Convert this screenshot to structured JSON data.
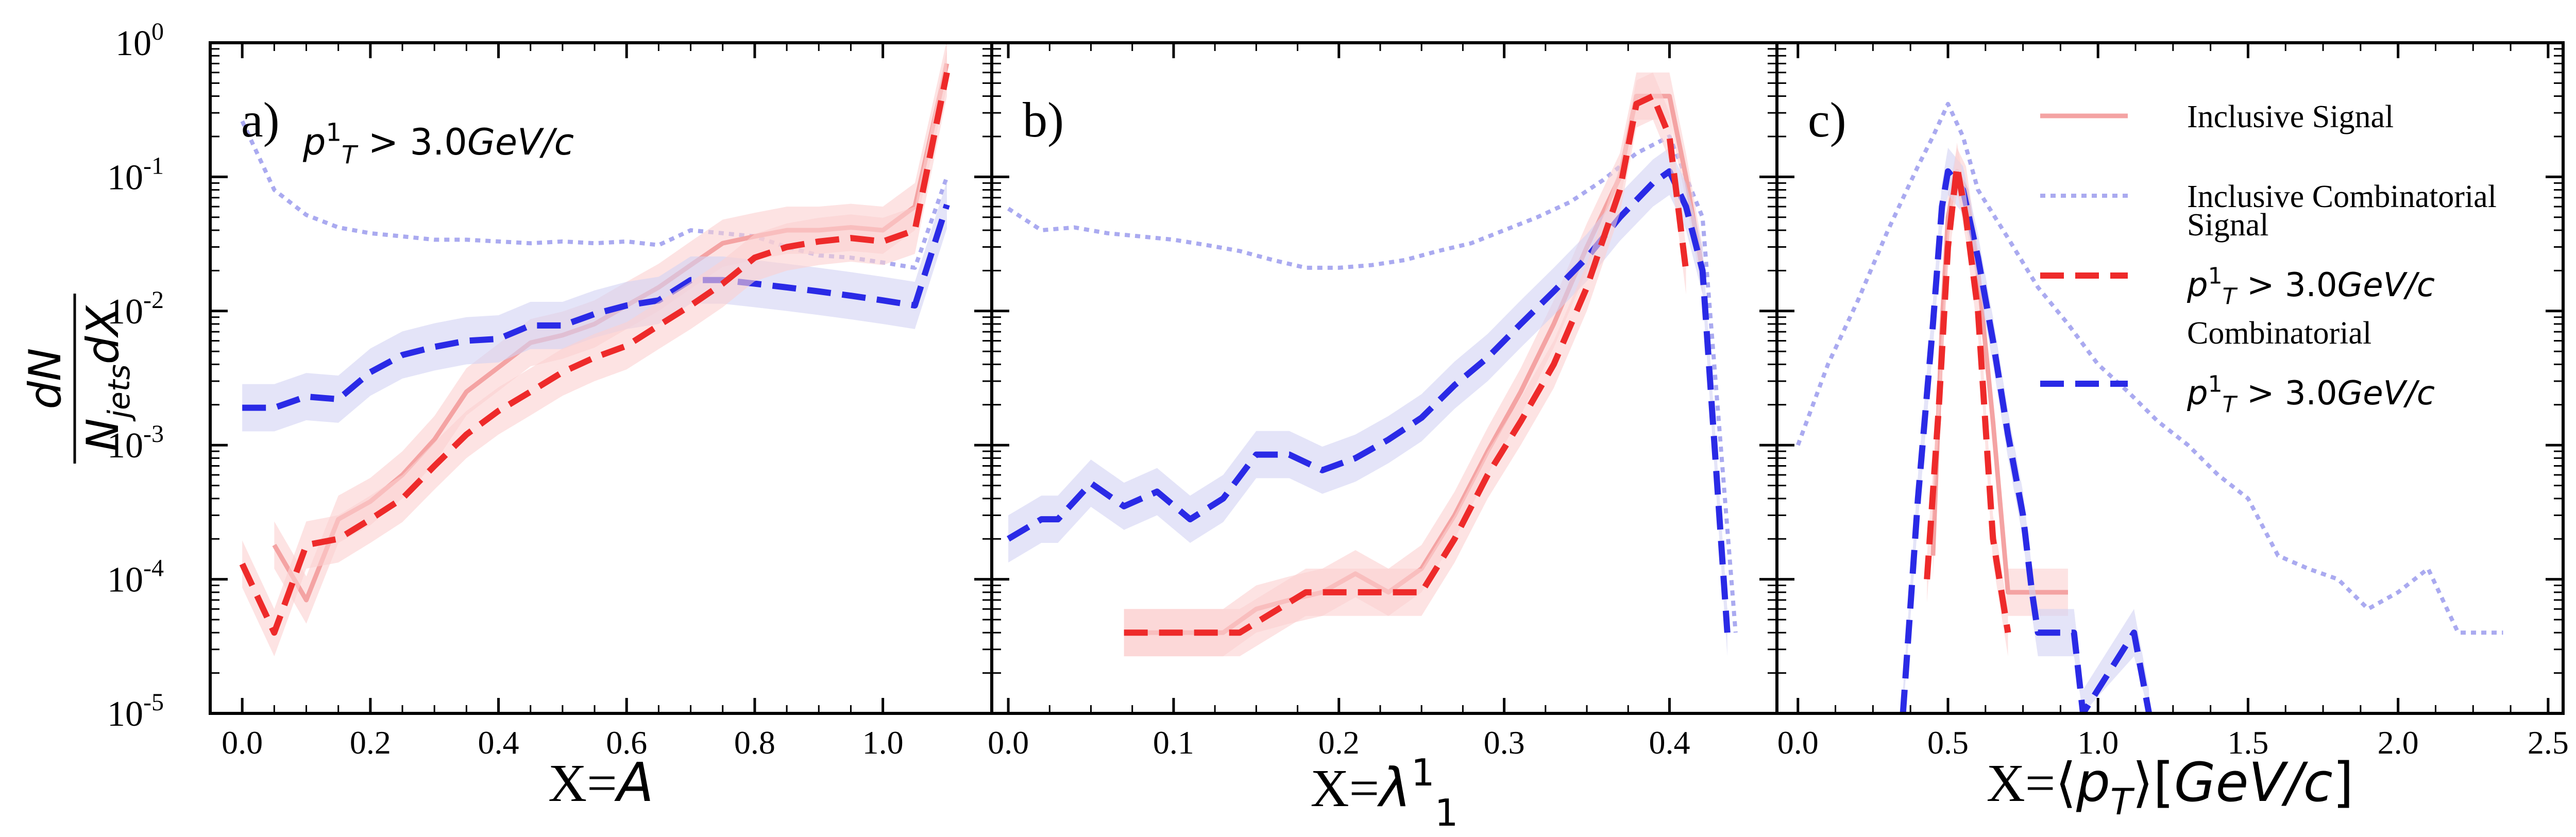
{
  "chart_data": [
    {
      "type": "line",
      "panel_label": "a)",
      "annotation": "p_T^1 > 3.0GeV/c",
      "xlabel": "X=A",
      "ylabel": "dN / N_jets dX",
      "yscale": "log",
      "ylim": [
        1e-05,
        1
      ],
      "xlim": [
        -0.05,
        1.17
      ],
      "xticks": [
        0.0,
        0.2,
        0.4,
        0.6,
        0.8,
        1.0
      ],
      "xtick_labels": [
        "0.0",
        "0.2",
        "0.4",
        "0.6",
        "0.8",
        "1.0"
      ],
      "series": [
        {
          "name": "Inclusive Combinatorial",
          "x": [
            0.0,
            0.05,
            0.1,
            0.15,
            0.2,
            0.25,
            0.3,
            0.35,
            0.4,
            0.45,
            0.5,
            0.55,
            0.6,
            0.65,
            0.7,
            0.75,
            0.8,
            0.85,
            0.9,
            0.95,
            1.0,
            1.05,
            1.1
          ],
          "y": [
            0.26,
            0.08,
            0.052,
            0.042,
            0.038,
            0.036,
            0.034,
            0.034,
            0.033,
            0.032,
            0.033,
            0.032,
            0.033,
            0.031,
            0.04,
            0.038,
            0.036,
            0.03,
            0.026,
            0.025,
            0.023,
            0.021,
            0.1
          ],
          "band": false
        },
        {
          "name": "Inclusive Signal",
          "x": [
            0.05,
            0.1,
            0.15,
            0.2,
            0.25,
            0.3,
            0.35,
            0.4,
            0.45,
            0.5,
            0.55,
            0.6,
            0.65,
            0.7,
            0.75,
            0.8,
            0.85,
            0.9,
            0.95,
            1.0,
            1.05,
            1.1
          ],
          "y": [
            0.00018,
            7e-05,
            0.00028,
            0.00038,
            0.0006,
            0.0011,
            0.0025,
            0.0038,
            0.0058,
            0.0066,
            0.008,
            0.011,
            0.015,
            0.022,
            0.032,
            0.036,
            0.04,
            0.04,
            0.042,
            0.04,
            0.06,
            0.7
          ],
          "band": true
        },
        {
          "name": "Combinatorial p_T^1 > 3.0GeV/c",
          "x": [
            0.0,
            0.05,
            0.1,
            0.15,
            0.2,
            0.25,
            0.3,
            0.35,
            0.4,
            0.45,
            0.5,
            0.55,
            0.6,
            0.65,
            0.7,
            0.75,
            0.8,
            0.85,
            0.9,
            0.95,
            1.0,
            1.05,
            1.1
          ],
          "y": [
            0.0019,
            0.0019,
            0.0023,
            0.0022,
            0.0035,
            0.0047,
            0.0054,
            0.006,
            0.0062,
            0.0078,
            0.0078,
            0.0095,
            0.011,
            0.012,
            0.017,
            0.017,
            0.016,
            0.015,
            0.014,
            0.013,
            0.012,
            0.011,
            0.062
          ],
          "band": true
        },
        {
          "name": "Signal p_T^1 > 3.0GeV/c",
          "x": [
            0.0,
            0.05,
            0.1,
            0.15,
            0.2,
            0.25,
            0.3,
            0.35,
            0.4,
            0.45,
            0.5,
            0.55,
            0.6,
            0.65,
            0.7,
            0.75,
            0.8,
            0.85,
            0.9,
            0.95,
            1.0,
            1.05,
            1.1
          ],
          "y": [
            0.00013,
            4e-05,
            0.00018,
            0.0002,
            0.00028,
            0.0004,
            0.0007,
            0.0012,
            0.0018,
            0.0025,
            0.0035,
            0.0045,
            0.0055,
            0.0078,
            0.011,
            0.016,
            0.025,
            0.03,
            0.033,
            0.035,
            0.033,
            0.04,
            0.6
          ],
          "band": true
        }
      ]
    },
    {
      "type": "line",
      "panel_label": "b)",
      "xlabel": "X=λ_1^1",
      "yscale": "log",
      "ylim": [
        1e-05,
        1
      ],
      "xlim": [
        -0.01,
        0.465
      ],
      "xticks": [
        0.0,
        0.1,
        0.2,
        0.3,
        0.4
      ],
      "xtick_labels": [
        "0.0",
        "0.1",
        "0.2",
        "0.3",
        "0.4"
      ],
      "series": [
        {
          "name": "Inclusive Combinatorial",
          "x": [
            0.0,
            0.02,
            0.04,
            0.06,
            0.08,
            0.1,
            0.12,
            0.14,
            0.16,
            0.18,
            0.2,
            0.22,
            0.24,
            0.26,
            0.28,
            0.3,
            0.32,
            0.34,
            0.36,
            0.38,
            0.4,
            0.42,
            0.44
          ],
          "y": [
            0.058,
            0.04,
            0.042,
            0.038,
            0.036,
            0.034,
            0.031,
            0.028,
            0.024,
            0.021,
            0.021,
            0.022,
            0.024,
            0.028,
            0.032,
            0.04,
            0.05,
            0.065,
            0.095,
            0.15,
            0.2,
            0.05,
            4e-05
          ],
          "band": false
        },
        {
          "name": "Inclusive Signal",
          "x": [
            0.07,
            0.09,
            0.11,
            0.13,
            0.15,
            0.17,
            0.19,
            0.21,
            0.23,
            0.25,
            0.27,
            0.29,
            0.31,
            0.33,
            0.35,
            0.37,
            0.38,
            0.39,
            0.4,
            0.41,
            0.42
          ],
          "y": [
            4e-05,
            4e-05,
            4e-05,
            4e-05,
            6e-05,
            7e-05,
            8e-05,
            0.00011,
            8e-05,
            0.00012,
            0.0003,
            0.0009,
            0.0025,
            0.008,
            0.03,
            0.1,
            0.4,
            0.4,
            0.4,
            0.1,
            0.02
          ],
          "band": true
        },
        {
          "name": "Combinatorial p_T^1 > 3.0GeV/c",
          "x": [
            0.0,
            0.02,
            0.03,
            0.05,
            0.07,
            0.09,
            0.11,
            0.13,
            0.15,
            0.17,
            0.19,
            0.21,
            0.23,
            0.25,
            0.27,
            0.29,
            0.31,
            0.33,
            0.35,
            0.37,
            0.39,
            0.4,
            0.41,
            0.42,
            0.435
          ],
          "y": [
            0.0002,
            0.00028,
            0.00028,
            0.00052,
            0.00035,
            0.00045,
            0.00028,
            0.0004,
            0.00085,
            0.00085,
            0.00065,
            0.0008,
            0.0011,
            0.0016,
            0.0028,
            0.0045,
            0.008,
            0.014,
            0.025,
            0.05,
            0.09,
            0.11,
            0.06,
            0.02,
            4e-05
          ],
          "band": true
        },
        {
          "name": "Signal p_T^1 > 3.0GeV/c",
          "x": [
            0.07,
            0.1,
            0.14,
            0.18,
            0.2,
            0.23,
            0.25,
            0.27,
            0.29,
            0.31,
            0.33,
            0.35,
            0.37,
            0.38,
            0.39,
            0.4,
            0.41
          ],
          "y": [
            4e-05,
            4e-05,
            4e-05,
            8e-05,
            8e-05,
            8e-05,
            8e-05,
            0.0002,
            0.0006,
            0.0015,
            0.004,
            0.015,
            0.08,
            0.35,
            0.4,
            0.2,
            0.02
          ],
          "band": true
        }
      ]
    },
    {
      "type": "line",
      "panel_label": "c)",
      "xlabel": "X=⟨p_T⟩[GeV/c]",
      "yscale": "log",
      "ylim": [
        1e-05,
        1
      ],
      "xlim": [
        -0.07,
        2.55
      ],
      "xticks": [
        0.0,
        0.5,
        1.0,
        1.5,
        2.0,
        2.5
      ],
      "xtick_labels": [
        "0.0",
        "0.5",
        "1.0",
        "1.5",
        "2.0",
        "2.5"
      ],
      "series": [
        {
          "name": "Inclusive Combinatorial",
          "x": [
            0.0,
            0.1,
            0.2,
            0.3,
            0.4,
            0.45,
            0.5,
            0.55,
            0.6,
            0.7,
            0.8,
            0.9,
            1.0,
            1.1,
            1.2,
            1.3,
            1.4,
            1.5,
            1.6,
            1.7,
            1.8,
            1.9,
            2.0,
            2.1,
            2.2,
            2.3,
            2.35
          ],
          "y": [
            0.001,
            0.004,
            0.012,
            0.04,
            0.12,
            0.2,
            0.35,
            0.2,
            0.08,
            0.035,
            0.015,
            0.008,
            0.004,
            0.0025,
            0.0015,
            0.001,
            0.0006,
            0.0004,
            0.00015,
            0.00012,
            0.0001,
            6e-05,
            8e-05,
            0.00012,
            4e-05,
            4e-05,
            4e-05
          ],
          "band": false
        },
        {
          "name": "Inclusive Signal",
          "x": [
            0.45,
            0.48,
            0.5,
            0.53,
            0.56,
            0.6,
            0.65,
            0.7,
            0.75,
            0.8,
            0.85,
            0.9
          ],
          "y": [
            0.00015,
            0.008,
            0.05,
            0.11,
            0.08,
            0.02,
            0.0015,
            8e-05,
            8e-05,
            8e-05,
            8e-05,
            8e-05
          ],
          "band": true
        },
        {
          "name": "Combinatorial p_T^1 > 3.0GeV/c",
          "x": [
            0.35,
            0.4,
            0.45,
            0.48,
            0.5,
            0.55,
            0.6,
            0.65,
            0.7,
            0.75,
            0.78,
            0.8,
            0.92,
            0.95,
            1.12,
            1.17
          ],
          "y": [
            1e-05,
            0.0004,
            0.008,
            0.06,
            0.11,
            0.08,
            0.025,
            0.006,
            0.0012,
            0.0003,
            8e-05,
            4e-05,
            4e-05,
            1e-05,
            4e-05,
            1e-05
          ],
          "band": true
        },
        {
          "name": "Signal p_T^1 > 3.0GeV/c",
          "x": [
            0.43,
            0.47,
            0.5,
            0.53,
            0.56,
            0.6,
            0.65,
            0.7
          ],
          "y": [
            0.0001,
            0.002,
            0.03,
            0.12,
            0.05,
            0.01,
            0.0002,
            4e-05
          ],
          "band": true
        }
      ]
    }
  ],
  "axes": {
    "ytick_labels": [
      "10^-5",
      "10^-4",
      "10^-3",
      "10^-2",
      "10^-1",
      "10^0"
    ],
    "ylabel_numerator": "dN",
    "ylabel_denominator": "N_jets dX"
  },
  "legend": {
    "placement": "top-right of panel c",
    "entries": [
      {
        "label_lines": [
          "Inclusive Signal"
        ],
        "color": "#f4a3a3",
        "style": "solid"
      },
      {
        "label_lines": [
          "Inclusive Combinatorial"
        ],
        "color": "#aaaaf0",
        "style": "dotted"
      },
      {
        "label_lines": [
          "Signal",
          "p_T^1 > 3.0GeV/c"
        ],
        "color": "#ee2a2a",
        "style": "dashed"
      },
      {
        "label_lines": [
          "Combinatorial",
          "p_T^1 > 3.0GeV/c"
        ],
        "color": "#2a2ae6",
        "style": "dashed"
      }
    ]
  },
  "colors": {
    "inclusive_signal": "#f4a3a3",
    "inclusive_combinatorial": "#aaaaf0",
    "signal": "#ee2a2a",
    "combinatorial": "#2a2ae6",
    "signal_band": "#fbd0d0",
    "combinatorial_band": "#d2d2f4"
  }
}
